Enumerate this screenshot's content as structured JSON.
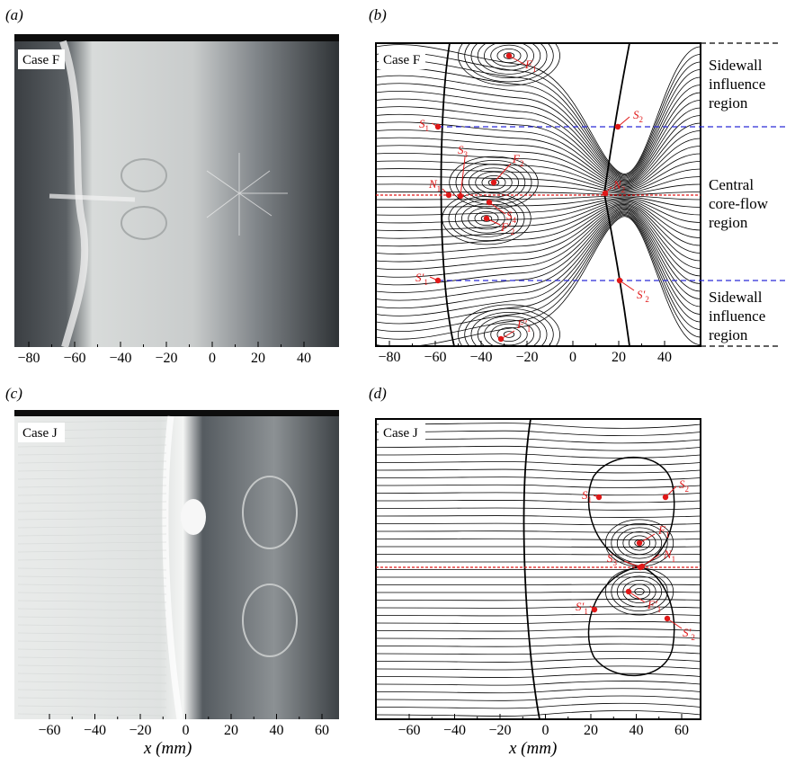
{
  "panels": [
    {
      "id": "a",
      "label": "(a)",
      "case": "Case F",
      "type": "photo",
      "xticks": [
        "−80",
        "−60",
        "−40",
        "−20",
        "0",
        "20",
        "40"
      ]
    },
    {
      "id": "b",
      "label": "(b)",
      "case": "Case F",
      "type": "sketch",
      "xticks": [
        "−80",
        "−60",
        "−40",
        "−20",
        "0",
        "20",
        "40"
      ]
    },
    {
      "id": "c",
      "label": "(c)",
      "case": "Case J",
      "type": "photo",
      "xticks": [
        "−60",
        "−40",
        "−20",
        "0",
        "20",
        "40",
        "60"
      ],
      "xlabel": "x (mm)"
    },
    {
      "id": "d",
      "label": "(d)",
      "case": "Case J",
      "type": "sketch",
      "xticks": [
        "−60",
        "−40",
        "−20",
        "0",
        "20",
        "40",
        "60"
      ],
      "xlabel": "x (mm)"
    }
  ],
  "regions": {
    "top": [
      "Sidewall",
      "influence",
      "region"
    ],
    "mid": [
      "Central",
      "core-flow",
      "region"
    ],
    "bot": [
      "Sidewall",
      "influence",
      "region"
    ]
  },
  "points_b": [
    {
      "name": "F1",
      "main": "F",
      "sub": "1",
      "prime": ""
    },
    {
      "name": "S1",
      "main": "S",
      "sub": "1",
      "prime": ""
    },
    {
      "name": "S2",
      "main": "S",
      "sub": "2",
      "prime": ""
    },
    {
      "name": "S3",
      "main": "S",
      "sub": "3",
      "prime": ""
    },
    {
      "name": "F2",
      "main": "F",
      "sub": "2",
      "prime": ""
    },
    {
      "name": "N1",
      "main": "N",
      "sub": "1",
      "prime": ""
    },
    {
      "name": "N2",
      "main": "N",
      "sub": "2",
      "prime": ""
    },
    {
      "name": "S4",
      "main": "S",
      "sub": "4",
      "prime": ""
    },
    {
      "name": "F2p",
      "main": "F",
      "sub": "2",
      "prime": "′"
    },
    {
      "name": "S1p",
      "main": "S",
      "sub": "1",
      "prime": "′"
    },
    {
      "name": "S2p",
      "main": "S",
      "sub": "2",
      "prime": "′"
    },
    {
      "name": "F1p",
      "main": "F",
      "sub": "1",
      "prime": "′"
    }
  ],
  "points_d": [
    {
      "name": "S1",
      "main": "S",
      "sub": "1",
      "prime": ""
    },
    {
      "name": "S2",
      "main": "S",
      "sub": "2",
      "prime": ""
    },
    {
      "name": "F1",
      "main": "F",
      "sub": "1",
      "prime": ""
    },
    {
      "name": "S3",
      "main": "S",
      "sub": "3",
      "prime": ""
    },
    {
      "name": "N1",
      "main": "N",
      "sub": "1",
      "prime": ""
    },
    {
      "name": "S1p",
      "main": "S",
      "sub": "1",
      "prime": "′"
    },
    {
      "name": "F1p",
      "main": "F",
      "sub": "1",
      "prime": "′"
    },
    {
      "name": "S2p",
      "main": "S",
      "sub": "2",
      "prime": "′"
    }
  ],
  "colors": {
    "accent_red": "#e01818",
    "dash_blue": "#2b2bd6",
    "line": "#000000"
  }
}
